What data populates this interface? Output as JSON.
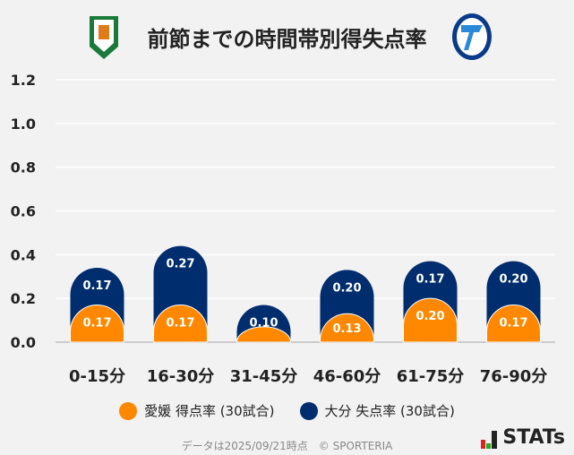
{
  "title": "前節までの時間帯別得失点率",
  "footer": "データは2025/09/21時点　© SPORTERIA",
  "brand": "STATs",
  "chart_data": {
    "type": "bar",
    "stacked": true,
    "categories": [
      "0-15分",
      "16-30分",
      "31-45分",
      "46-60分",
      "61-75分",
      "76-90分"
    ],
    "series": [
      {
        "name": "愛媛 得点率 (30試合)",
        "color": "#ff8800",
        "values": [
          0.17,
          0.17,
          0.07,
          0.13,
          0.2,
          0.17
        ],
        "labels": [
          "0.17",
          "0.17",
          "",
          "0.13",
          "0.20",
          "0.17"
        ]
      },
      {
        "name": "大分 失点率 (30試合)",
        "color": "#002d6e",
        "values": [
          0.17,
          0.27,
          0.1,
          0.2,
          0.17,
          0.2
        ],
        "labels": [
          "0.17",
          "0.27",
          "0.10",
          "0.20",
          "0.17",
          "0.20"
        ]
      }
    ],
    "yticks": [
      "0.0",
      "0.2",
      "0.4",
      "0.6",
      "0.8",
      "1.0",
      "1.2"
    ],
    "ylim": [
      0,
      1.2
    ],
    "grid": true,
    "legend": "bottom"
  }
}
